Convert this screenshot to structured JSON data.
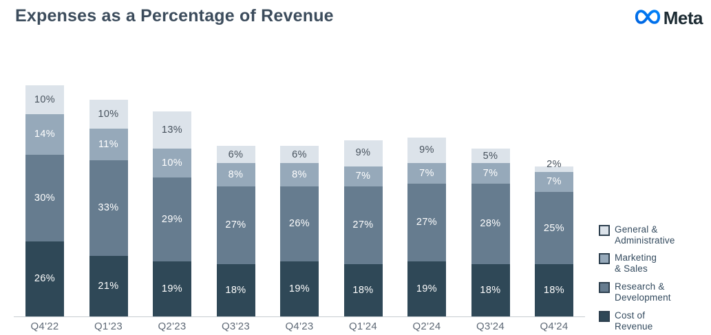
{
  "header": {
    "title": "Expenses as a Percentage of Revenue",
    "brand": "Meta"
  },
  "chart_data": {
    "type": "bar",
    "stacked": true,
    "title": "Expenses as a Percentage of Revenue",
    "categories": [
      "Q4'22",
      "Q1'23",
      "Q2'23",
      "Q3'23",
      "Q4'23",
      "Q1'24",
      "Q2'24",
      "Q3'24",
      "Q4'24"
    ],
    "series": [
      {
        "name": "Cost of Revenue",
        "color": "#2f4857",
        "label_color": "#ffffff",
        "values": [
          26,
          21,
          19,
          18,
          19,
          18,
          19,
          18,
          18
        ]
      },
      {
        "name": "Research & Development",
        "color": "#667c8f",
        "label_color": "#ffffff",
        "values": [
          30,
          33,
          29,
          27,
          26,
          27,
          27,
          28,
          25
        ]
      },
      {
        "name": "Marketing & Sales",
        "color": "#96a9ba",
        "label_color": "#ffffff",
        "values": [
          14,
          11,
          10,
          8,
          8,
          7,
          7,
          7,
          7
        ]
      },
      {
        "name": "General & Administrative",
        "color": "#dce3ea",
        "label_color": "#46515c",
        "values": [
          10,
          10,
          13,
          6,
          6,
          9,
          9,
          5,
          2
        ]
      }
    ],
    "value_suffix": "%",
    "xlabel": "",
    "ylabel": "",
    "ylim": [
      0,
      80
    ],
    "grid": false,
    "legend_position": "right"
  },
  "legend": {
    "items": [
      {
        "label_lines": "General &\nAdministrative",
        "color": "#dce3ea"
      },
      {
        "label_lines": "Marketing\n& Sales",
        "color": "#96a9ba"
      },
      {
        "label_lines": "Research &\nDevelopment",
        "color": "#667c8f"
      },
      {
        "label_lines": "Cost of\nRevenue",
        "color": "#2f4857"
      }
    ]
  },
  "colors": {
    "title": "#3c4c5c",
    "axis_line": "#c7ccd1",
    "axis_label": "#5d6875",
    "brand_blue_start": "#0064E0",
    "brand_blue_end": "#0082FB",
    "brand_text": "#1c2b33"
  }
}
